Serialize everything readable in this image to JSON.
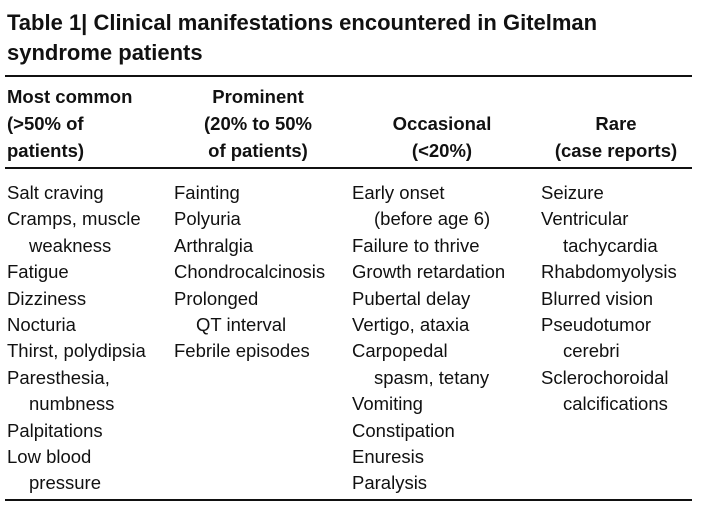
{
  "title": [
    "Table 1| Clinical manifestations encountered in Gitelman",
    "syndrome patients"
  ],
  "table": {
    "columns": [
      {
        "header": [
          "Most common",
          "(>50% of",
          "patients)"
        ],
        "items": [
          [
            "Salt craving"
          ],
          [
            "Cramps, muscle",
            "weakness"
          ],
          [
            "Fatigue"
          ],
          [
            "Dizziness"
          ],
          [
            "Nocturia"
          ],
          [
            "Thirst, polydipsia"
          ],
          [
            "Paresthesia,",
            "numbness"
          ],
          [
            "Palpitations"
          ],
          [
            "Low blood",
            "pressure"
          ]
        ]
      },
      {
        "header": [
          "Prominent",
          "(20% to 50%",
          "of patients)"
        ],
        "items": [
          [
            "Fainting"
          ],
          [
            "Polyuria"
          ],
          [
            "Arthralgia"
          ],
          [
            "Chondrocalcinosis"
          ],
          [
            "Prolonged",
            "QT interval"
          ],
          [
            "Febrile episodes"
          ]
        ]
      },
      {
        "header": [
          "Occasional",
          "(<20%)"
        ],
        "items": [
          [
            "Early onset",
            "(before age 6)"
          ],
          [
            "Failure to thrive"
          ],
          [
            "Growth retardation"
          ],
          [
            "Pubertal delay"
          ],
          [
            "Vertigo, ataxia"
          ],
          [
            "Carpopedal",
            "spasm, tetany"
          ],
          [
            "Vomiting"
          ],
          [
            "Constipation"
          ],
          [
            "Enuresis"
          ],
          [
            "Paralysis"
          ]
        ]
      },
      {
        "header": [
          "Rare",
          "(case reports)"
        ],
        "items": [
          [
            "Seizure"
          ],
          [
            "Ventricular",
            "tachycardia"
          ],
          [
            "Rhabdomyolysis"
          ],
          [
            "Blurred vision"
          ],
          [
            "Pseudotumor",
            "cerebri"
          ],
          [
            "Sclerochoroidal",
            "calcifications"
          ]
        ]
      }
    ]
  }
}
